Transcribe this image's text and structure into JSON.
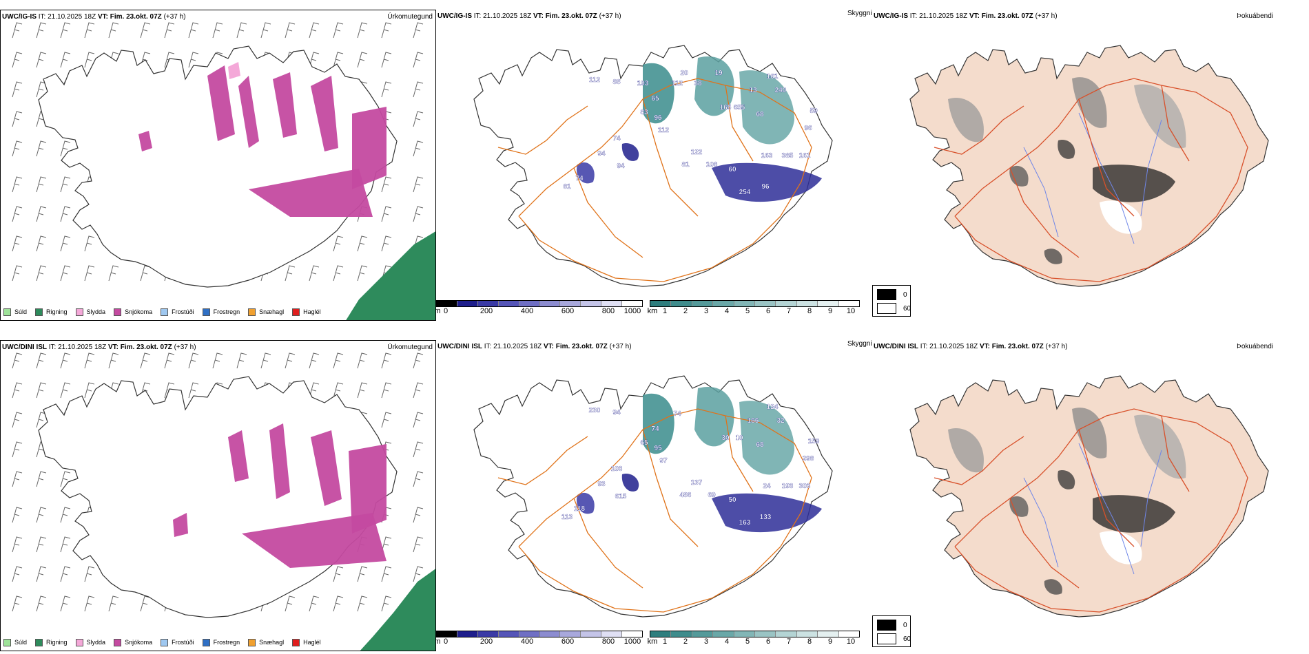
{
  "rows": [
    {
      "precip_title_model": "UWC/IG-IS",
      "cloud_title_model": "UWC/IG-IS",
      "fog_title_model": "UWC/IG-IS",
      "it_label": "IT:",
      "it_value": "21.10.2025 18Z",
      "vt_label": "VT: Fim. 23.okt. 07Z",
      "lead": "(+37 h)",
      "cloud_labels": [
        "112",
        "88",
        "65",
        "83",
        "96",
        "112",
        "74",
        "94",
        "74",
        "81",
        "94",
        "122",
        "81",
        "108",
        "60",
        "254",
        "96",
        "163",
        "385",
        "161",
        "96",
        "59",
        "13",
        "161",
        "240",
        "68",
        "655",
        "165",
        "112",
        "193",
        "38",
        "20",
        "19"
      ]
    },
    {
      "precip_title_model": "UWC/DINI ISL",
      "cloud_title_model": "UWC/DINI ISL",
      "fog_title_model": "UWC/DINI ISL",
      "it_label": "IT:",
      "it_value": "21.10.2025 18Z",
      "vt_label": "VT: Fim. 23.okt. 07Z",
      "lead": "(+37 h)",
      "cloud_labels": [
        "230",
        "94",
        "74",
        "65",
        "95",
        "97",
        "103",
        "93",
        "118",
        "113",
        "615",
        "137",
        "486",
        "69",
        "50",
        "163",
        "133",
        "24",
        "193",
        "303",
        "298",
        "159",
        "166",
        "124",
        "32",
        "68",
        "10",
        "30",
        "74"
      ]
    }
  ],
  "panel_labels": {
    "precip": "Úrkomutegund",
    "cloud": "Skyggni",
    "fog": "Þokuábendi"
  },
  "precip_legend": [
    {
      "label": "Súld",
      "color": "#9fe39a"
    },
    {
      "label": "Rigning",
      "color": "#2e8b5c"
    },
    {
      "label": "Slydda",
      "color": "#f4a8d8"
    },
    {
      "label": "Snjókoma",
      "color": "#c44aa0"
    },
    {
      "label": "Frostúði",
      "color": "#9fc8f0"
    },
    {
      "label": "Frostregn",
      "color": "#2f6fc4"
    },
    {
      "label": "Snæhagl",
      "color": "#f0a030"
    },
    {
      "label": "Haglél",
      "color": "#e01e1e"
    }
  ],
  "ceiling_bar": {
    "unit": "m",
    "ticks": [
      "0",
      "200",
      "400",
      "600",
      "800",
      "1000"
    ]
  },
  "visibility_bar": {
    "unit": "km",
    "ticks": [
      "1",
      "2",
      "3",
      "4",
      "5",
      "6",
      "7",
      "8",
      "9",
      "10"
    ]
  },
  "fog_legend": {
    "dark_label": "0",
    "light_label": "60"
  },
  "colors": {
    "snow": "#c44aa0",
    "sleet": "#f4a8d8",
    "rain": "#2e8b5c",
    "road": "#e0731a",
    "fog_land": "#f4dccc",
    "fog_road": "#d8502a",
    "river": "#6f86e8"
  }
}
